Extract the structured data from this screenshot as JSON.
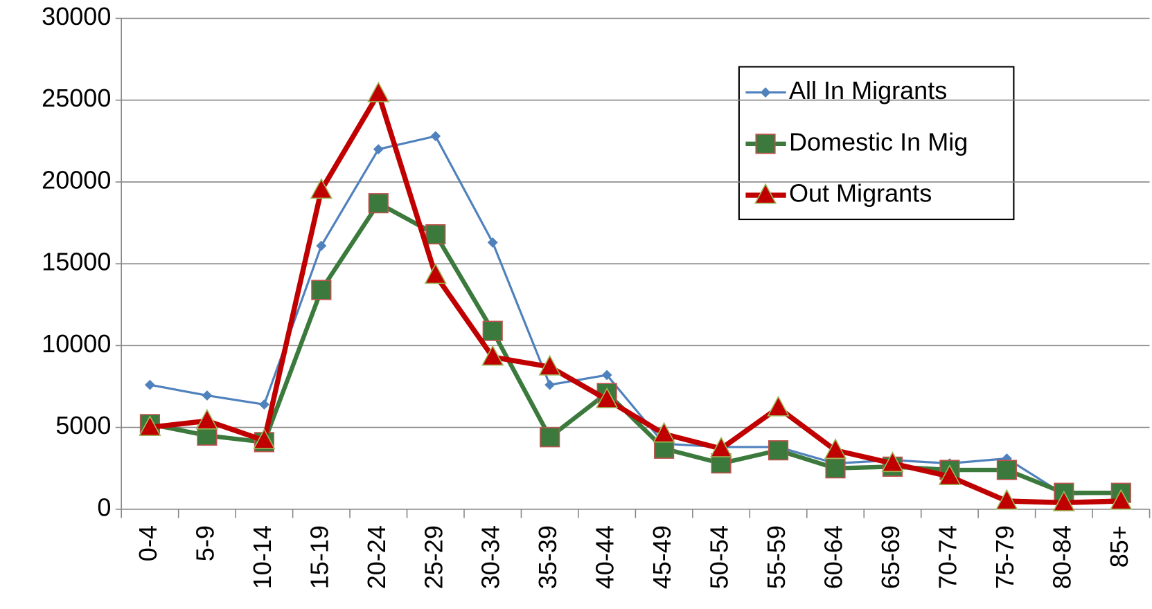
{
  "chart_data": {
    "type": "line",
    "categories": [
      "0-4",
      "5-9",
      "10-14",
      "15-19",
      "20-24",
      "25-29",
      "30-34",
      "35-39",
      "40-44",
      "45-49",
      "50-54",
      "55-59",
      "60-64",
      "65-69",
      "70-74",
      "75-79",
      "80-84",
      "85+"
    ],
    "series": [
      {
        "name": "All In Migrants",
        "color": "#4f81bd",
        "marker": "diamond",
        "values": [
          7600,
          6950,
          6400,
          16100,
          22000,
          22800,
          16300,
          7600,
          8200,
          4000,
          3800,
          3800,
          2800,
          3000,
          2800,
          3100,
          900,
          1000
        ]
      },
      {
        "name": "Domestic In Mig",
        "color": "#3b7a3c",
        "marker": "square",
        "values": [
          5200,
          4500,
          4100,
          13400,
          18700,
          16800,
          10900,
          4400,
          7100,
          3700,
          2800,
          3600,
          2500,
          2600,
          2400,
          2400,
          1000,
          1000
        ]
      },
      {
        "name": "Out Migrants",
        "color": "#c00000",
        "marker": "triangle",
        "values": [
          5000,
          5400,
          4200,
          19500,
          25400,
          14300,
          9300,
          8700,
          6700,
          4600,
          3700,
          6200,
          3600,
          2800,
          2000,
          500,
          400,
          500
        ]
      }
    ],
    "ylim": [
      0,
      30000
    ],
    "yticks": [
      0,
      5000,
      10000,
      15000,
      20000,
      25000,
      30000
    ],
    "grid": true,
    "legend": "top-right"
  }
}
